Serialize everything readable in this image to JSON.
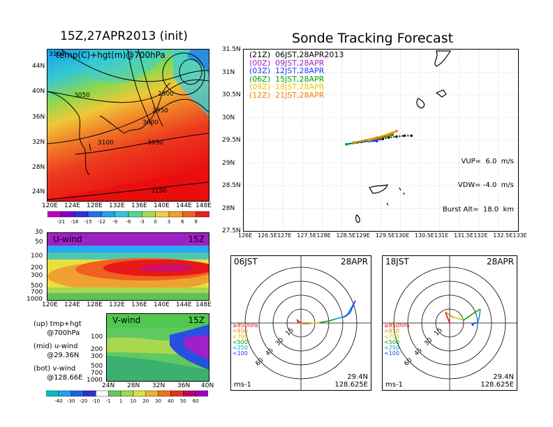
{
  "left": {
    "title": "15Z,27APR2013 (init)",
    "map_label": "temp(C)+hgt(m)@700hPa",
    "map_lon_ticks": [
      "120E",
      "124E",
      "128E",
      "132E",
      "136E",
      "140E",
      "144E",
      "148E"
    ],
    "map_lat_ticks": [
      "44N",
      "40N",
      "36N",
      "32N",
      "28N",
      "24N"
    ],
    "contour_labels": [
      "3100",
      "3050",
      "2900",
      "2950",
      "3000",
      "3100",
      "3050",
      "3150"
    ],
    "temp_colorbar": [
      "-21",
      "-18",
      "-15",
      "-12",
      "-9",
      "-6",
      "-3",
      "0",
      "3",
      "6",
      "9"
    ],
    "u_wind": {
      "label": "U-wind",
      "time": "15Z",
      "y_ticks": [
        "30",
        "50",
        "100",
        "200",
        "300",
        "500",
        "700",
        "1000"
      ],
      "x_ticks": [
        "120E",
        "124E",
        "128E",
        "132E",
        "136E",
        "140E",
        "144E",
        "148E"
      ]
    },
    "v_wind": {
      "label": "V-wind",
      "time": "15Z",
      "y_ticks": [
        "100",
        "200",
        "300",
        "500",
        "700",
        "1000"
      ],
      "x_ticks": [
        "24N",
        "28N",
        "32N",
        "36N",
        "40N"
      ]
    },
    "wind_colorbar": [
      "-40",
      "-30",
      "-20",
      "-10",
      "-1",
      "1",
      "10",
      "20",
      "30",
      "40",
      "50",
      "60"
    ],
    "notes": [
      {
        "lines": [
          "(up) tmp+hgt",
          "      @700hPa"
        ]
      },
      {
        "lines": [
          "(mid) u-wind",
          "      @29.36N"
        ]
      },
      {
        "lines": [
          "(bot) v-wind",
          "      @128.66E"
        ]
      }
    ]
  },
  "right": {
    "title": "Sonde Tracking Forecast",
    "legend": [
      {
        "text": "(21Z)  06JST,28APR2013",
        "color": "#000000"
      },
      {
        "text": "(00Z)  09JST,28APR",
        "color": "#a020c0"
      },
      {
        "text": "(03Z)  12JST,28APR",
        "color": "#1e3cff"
      },
      {
        "text": "(06Z)  15JST,28APR",
        "color": "#00a000"
      },
      {
        "text": "(09Z)  18JST,28APR",
        "color": "#e6c800"
      },
      {
        "text": "(12Z)  21JST,28APR",
        "color": "#f08000"
      }
    ],
    "lat_ticks": [
      "31.5N",
      "31N",
      "30.5N",
      "30N",
      "29.5N",
      "29N",
      "28.5N",
      "28N",
      "27.5N"
    ],
    "lon_ticks": [
      "126E",
      "126.5E",
      "127E",
      "127.5E",
      "128E",
      "128.5E",
      "129E",
      "129.5E",
      "130E",
      "130.5E",
      "131E",
      "131.5E",
      "132E",
      "132.5E",
      "133E"
    ],
    "params": [
      "VUP=  6.0  m/s",
      "VDW= -4.0  m/s",
      "Burst Alt=  18.0  km"
    ],
    "polar": [
      {
        "time": "06JST",
        "date": "28APR",
        "levels": [
          "≥850hPa",
          "<850",
          "<700",
          "<500",
          "<250",
          "<100"
        ],
        "rings": [
          "15",
          "30",
          "45",
          "60"
        ],
        "unit": "ms-1",
        "lat": "29.4N",
        "lon": "128.625E"
      },
      {
        "time": "18JST",
        "date": "28APR",
        "levels": [
          "≥850hPa",
          "<850",
          "<700",
          "<500",
          "<250",
          "<100"
        ],
        "rings": [
          "15",
          "30",
          "45",
          "60"
        ],
        "unit": "ms-1",
        "lat": "29.4N",
        "lon": "128.625E"
      }
    ]
  },
  "chart_data": {
    "type": "line",
    "title": "Sonde Tracking Forecast",
    "xlim": [
      126,
      133
    ],
    "ylim": [
      27.5,
      31.5
    ],
    "series": [
      {
        "name": "(21Z) 06JST,28APR2013",
        "x": [
          130.28,
          130.1,
          129.9,
          129.7,
          129.55
        ],
        "y": [
          29.6,
          29.6,
          29.58,
          29.56,
          29.53
        ]
      },
      {
        "name": "(00Z) 09JST,28APR",
        "x": [
          129.5,
          129.3,
          129.1,
          128.9
        ],
        "y": [
          29.52,
          29.5,
          29.48,
          29.45
        ]
      },
      {
        "name": "(03Z) 12JST,28APR",
        "x": [
          129.4,
          129.2,
          129.0,
          128.8,
          128.62
        ],
        "y": [
          29.48,
          29.48,
          29.46,
          29.44,
          29.41
        ]
      },
      {
        "name": "(06Z) 15JST,28APR",
        "x": [
          128.62,
          128.9,
          129.2,
          129.5,
          129.8
        ],
        "y": [
          29.41,
          29.45,
          29.5,
          29.55,
          29.62
        ]
      },
      {
        "name": "(09Z) 18JST,28APR",
        "x": [
          129.2,
          129.5,
          129.75,
          129.9
        ],
        "y": [
          29.5,
          29.58,
          29.66,
          29.7
        ]
      },
      {
        "name": "(12Z) 21JST,28APR",
        "x": [
          128.8,
          129.1,
          129.4,
          129.7,
          129.9
        ],
        "y": [
          29.45,
          29.5,
          29.56,
          29.62,
          29.7
        ]
      }
    ]
  }
}
